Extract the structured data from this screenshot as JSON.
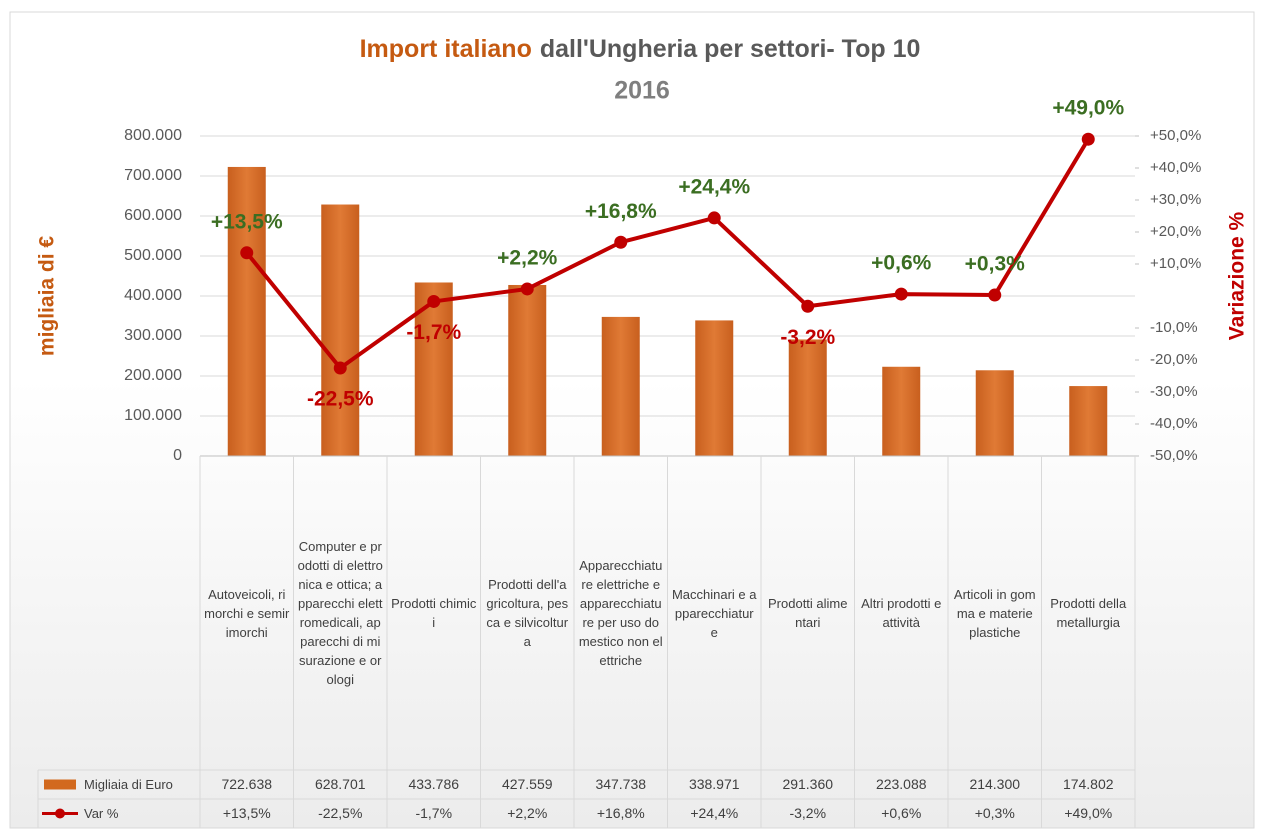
{
  "chart_data": {
    "type": "bar-line",
    "title": [
      "Import italiano",
      "dall'Ungheria per settori- Top 10"
    ],
    "subtitle": "2016",
    "y_label": "migliaia di €",
    "y2_label": "Variazione %",
    "categories": [
      "Autoveicoli, rimorchi e semirimorchi",
      "Computer e prodotti di elettronica e ottica; apparecchi elettromedicali, apparecchi di misurazione e orologi",
      "Prodotti chimici",
      "Prodotti dell'agricoltura, pesca e silvicoltura",
      "Apparecchiature elettriche e apparecchiature per uso domestico non elettriche",
      "Macchinari e apparecchiature",
      "Prodotti alimentari",
      "Altri prodotti e attività",
      "Articoli in gomma e materie plastiche",
      "Prodotti della metallurgia"
    ],
    "series": [
      {
        "name": "Migliaia di Euro",
        "color": "#d2691e",
        "type": "bar",
        "values": [
          722638,
          628701,
          433786,
          427559,
          347738,
          338971,
          291360,
          223088,
          214300,
          174802
        ],
        "value_labels": [
          "722.638",
          "628.701",
          "433.786",
          "427.559",
          "347.738",
          "338.971",
          "291.360",
          "223.088",
          "214.300",
          "174.802"
        ]
      },
      {
        "name": "Var %",
        "color": "#c00000",
        "type": "line",
        "axis": "y2",
        "values": [
          13.5,
          -22.5,
          -1.7,
          2.2,
          16.8,
          24.4,
          -3.2,
          0.6,
          0.3,
          49.0
        ],
        "value_labels": [
          "+13,5%",
          "-22,5%",
          "-1,7%",
          "+2,2%",
          "+16,8%",
          "+24,4%",
          "-3,2%",
          "+0,6%",
          "+0,3%",
          "+49,0%"
        ]
      }
    ],
    "ylim": [
      0,
      800000
    ],
    "yticks": [
      0,
      {
        "value": 100000,
        "label": "100.000"
      },
      {
        "value": 200000,
        "label": "200.000"
      },
      {
        "value": 300000,
        "label": "300.000"
      },
      {
        "value": 400000,
        "label": "400.000"
      },
      {
        "value": 500000,
        "label": "500.000"
      },
      {
        "value": 600000,
        "label": "600.000"
      },
      {
        "value": 700000,
        "label": "700.000"
      },
      {
        "value": 800000,
        "label": "800.000"
      }
    ],
    "y2lim": [
      -50,
      50
    ],
    "y2ticks": [
      {
        "value": -50,
        "label": "-50,0%"
      },
      {
        "value": -40,
        "label": "-40,0%"
      },
      {
        "value": -30,
        "label": "-30,0%"
      },
      {
        "value": -20,
        "label": "-20,0%"
      },
      {
        "value": -10,
        "label": "-10,0%"
      },
      {
        "value": 10,
        "label": "+10,0%"
      },
      {
        "value": 20,
        "label": "+20,0%"
      },
      {
        "value": 30,
        "label": "+30,0%"
      },
      {
        "value": 40,
        "label": "+40,0%"
      },
      {
        "value": 50,
        "label": "+50,0%"
      }
    ],
    "grid": true,
    "data_table": true,
    "label_colors": {
      "positive": "#3b6e22",
      "negative": "#c00000"
    }
  }
}
